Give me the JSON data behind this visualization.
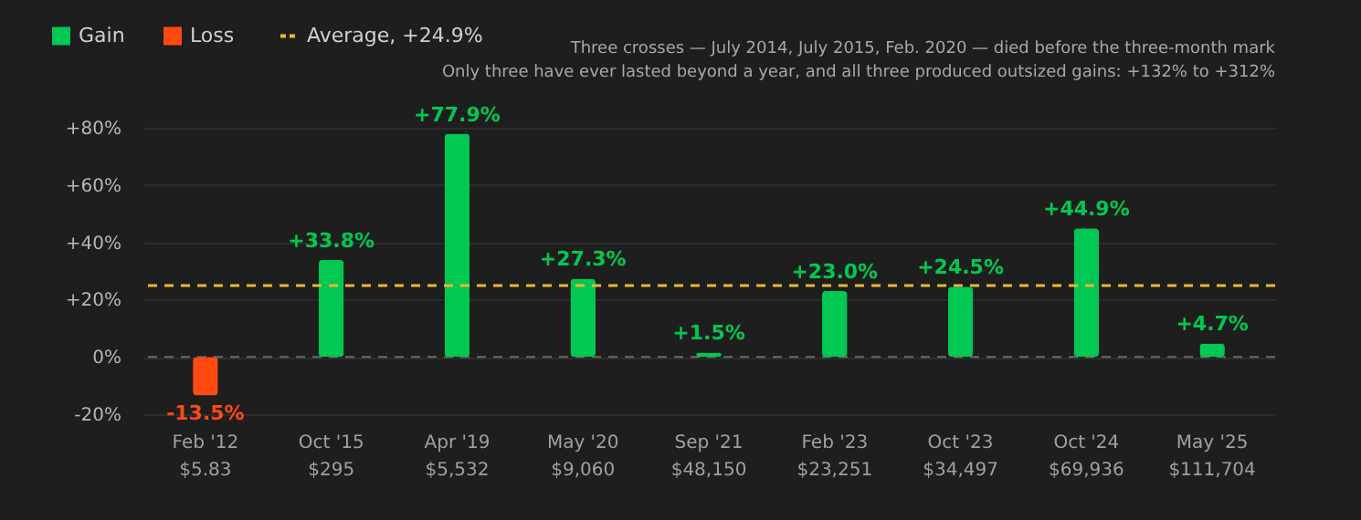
{
  "chart_data": {
    "type": "bar",
    "categories": [
      "Feb '12\n$5.83",
      "Oct '15\n$295",
      "Apr '19\n$5,532",
      "May '20\n$9,060",
      "Sep '21\n$48,150",
      "Feb '23\n$23,251",
      "Oct '23\n$34,497",
      "Oct '24\n$69,936",
      "May '25\n$111,704"
    ],
    "series": [
      {
        "name": "Gain",
        "color": "#00c853",
        "values": [
          null,
          33.8,
          77.9,
          27.3,
          1.5,
          23.0,
          24.5,
          44.9,
          4.7
        ],
        "value_labels": [
          null,
          "+33.8%",
          "+77.9%",
          "+27.3%",
          "+1.5%",
          "+23.0%",
          "+24.5%",
          "+44.9%",
          "+4.7%"
        ]
      },
      {
        "name": "Loss",
        "color": "#ff4a12",
        "values": [
          -13.5,
          null,
          null,
          null,
          null,
          null,
          null,
          null,
          null
        ],
        "value_labels": [
          "-13.5%",
          null,
          null,
          null,
          null,
          null,
          null,
          null,
          null
        ]
      }
    ],
    "ylim": [
      -20,
      80
    ],
    "yticks": [
      {
        "value": -20,
        "label": "-20%"
      },
      {
        "value": 0,
        "label": "0%"
      },
      {
        "value": 20,
        "label": "+20%"
      },
      {
        "value": 40,
        "label": "+40%"
      },
      {
        "value": 60,
        "label": "+60%"
      },
      {
        "value": 80,
        "label": "+80%"
      }
    ],
    "grid": "y",
    "legend": "top left",
    "ref_lines": [
      {
        "axis": "y",
        "value": 24.9,
        "label": "Average, +24.9%",
        "color": "#e8b931",
        "line_style": "dashed"
      },
      {
        "axis": "y",
        "value": 0,
        "color": "#6a6a6a",
        "line_style": "dashed"
      }
    ],
    "annotations": [
      "Three crosses — July 2014, July 2015, Feb. 2020 — died before the three-month mark",
      "Only three have ever lasted beyond a year, and all three produced outsized gains: +132% to +312%"
    ]
  }
}
